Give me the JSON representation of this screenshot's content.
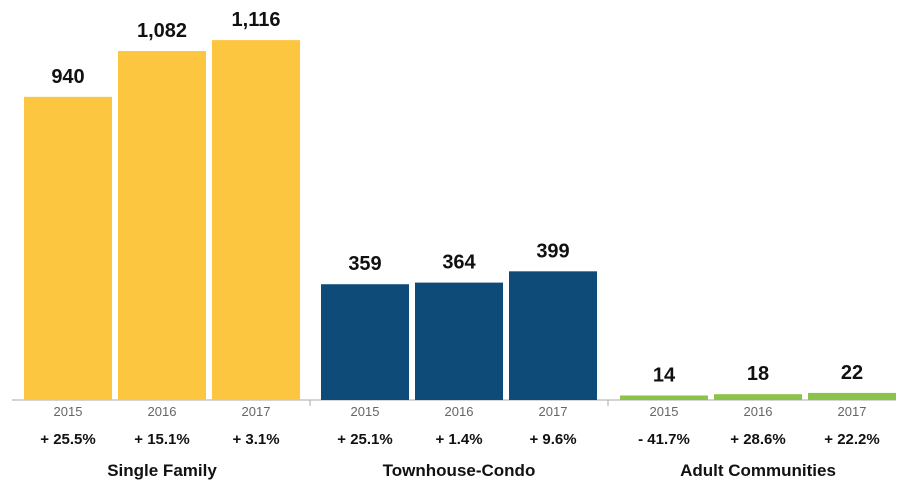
{
  "chart_data": {
    "type": "bar",
    "groups": [
      {
        "name": "Single Family",
        "color": "#FDC640",
        "bars": [
          {
            "year": "2015",
            "value": 940,
            "value_label": "940",
            "change": "+ 25.5%"
          },
          {
            "year": "2016",
            "value": 1082,
            "value_label": "1,082",
            "change": "+ 15.1%"
          },
          {
            "year": "2017",
            "value": 1116,
            "value_label": "1,116",
            "change": "+ 3.1%"
          }
        ]
      },
      {
        "name": "Townhouse-Condo",
        "color": "#0F4B78",
        "bars": [
          {
            "year": "2015",
            "value": 359,
            "value_label": "359",
            "change": "+ 25.1%"
          },
          {
            "year": "2016",
            "value": 364,
            "value_label": "364",
            "change": "+ 1.4%"
          },
          {
            "year": "2017",
            "value": 399,
            "value_label": "399",
            "change": "+ 9.6%"
          }
        ]
      },
      {
        "name": "Adult Communities",
        "color": "#8BC34A",
        "bars": [
          {
            "year": "2015",
            "value": 14,
            "value_label": "14",
            "change": "- 41.7%"
          },
          {
            "year": "2016",
            "value": 18,
            "value_label": "18",
            "change": "+ 28.6%"
          },
          {
            "year": "2017",
            "value": 22,
            "value_label": "22",
            "change": "+ 22.2%"
          }
        ]
      }
    ],
    "ylim": [
      0,
      1216
    ],
    "grid": false,
    "legend": "none"
  }
}
